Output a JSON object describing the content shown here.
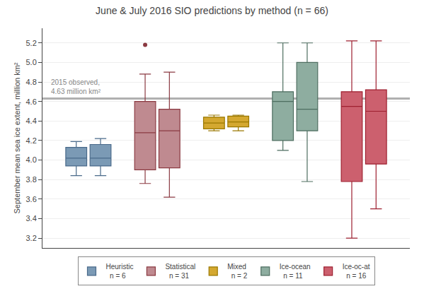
{
  "chart_data": {
    "type": "box",
    "title": "June & July 2016 SIO predictions by method (n = 66)",
    "ylabel": "September mean sea ice extent, million km²",
    "observed_line": 4.63,
    "observed_label": "2015 observed,\n4.63 million km²",
    "ylim": [
      3.1,
      5.35
    ],
    "yticks": [
      3.2,
      3.4,
      3.6,
      3.8,
      {
        "value": 4.0,
        "label": "4.0"
      },
      4.2,
      4.4,
      4.6,
      4.8,
      {
        "value": 5.0,
        "label": "5.0"
      },
      5.2
    ],
    "grid": true,
    "legend": "bottom",
    "tick_labels": "y",
    "series": [
      {
        "name": "Heuristic\n  n = 6",
        "color": "#7b9ab5",
        "edge_color": "#4a6a8a",
        "boxes": [
          {
            "whisker_low": 3.84,
            "q1": 3.94,
            "median": 4.02,
            "q3": 4.13,
            "whisker_high": 4.19,
            "outliers": []
          },
          {
            "whisker_low": 3.84,
            "q1": 3.94,
            "median": 4.02,
            "q3": 4.16,
            "whisker_high": 4.22,
            "outliers": []
          }
        ]
      },
      {
        "name": "Statistical\n  n = 31",
        "color": "#bf8a90",
        "edge_color": "#8b3a42",
        "boxes": [
          {
            "whisker_low": 3.76,
            "q1": 3.9,
            "median": 4.28,
            "q3": 4.6,
            "whisker_high": 4.88,
            "outliers": [
              5.18
            ]
          },
          {
            "whisker_low": 3.62,
            "q1": 3.92,
            "median": 4.3,
            "q3": 4.52,
            "whisker_high": 4.9,
            "outliers": []
          }
        ]
      },
      {
        "name": "Mixed\n  n = 2",
        "color": "#d4a830",
        "edge_color": "#9a7800",
        "boxes": [
          {
            "whisker_low": 4.3,
            "q1": 4.32,
            "median": 4.38,
            "q3": 4.44,
            "whisker_high": 4.46,
            "outliers": []
          },
          {
            "whisker_low": 4.3,
            "q1": 4.34,
            "median": 4.39,
            "q3": 4.45,
            "whisker_high": 4.46,
            "outliers": []
          }
        ]
      },
      {
        "name": "Ice-ocean\n  n = 11",
        "color": "#8eada0",
        "edge_color": "#4e6e60",
        "boxes": [
          {
            "whisker_low": 4.1,
            "q1": 4.2,
            "median": 4.6,
            "q3": 4.7,
            "whisker_high": 5.2,
            "outliers": []
          },
          {
            "whisker_low": 3.78,
            "q1": 4.3,
            "median": 4.52,
            "q3": 5.0,
            "whisker_high": 5.2,
            "outliers": []
          }
        ]
      },
      {
        "name": "Ice-oc-at\n  n = 16",
        "color": "#cc606e",
        "edge_color": "#9e2030",
        "boxes": [
          {
            "whisker_low": 3.2,
            "q1": 3.78,
            "median": 4.55,
            "q3": 4.7,
            "whisker_high": 5.22,
            "outliers": []
          },
          {
            "whisker_low": 3.5,
            "q1": 3.96,
            "median": 4.5,
            "q3": 4.72,
            "whisker_high": 5.22,
            "outliers": []
          }
        ]
      }
    ]
  }
}
